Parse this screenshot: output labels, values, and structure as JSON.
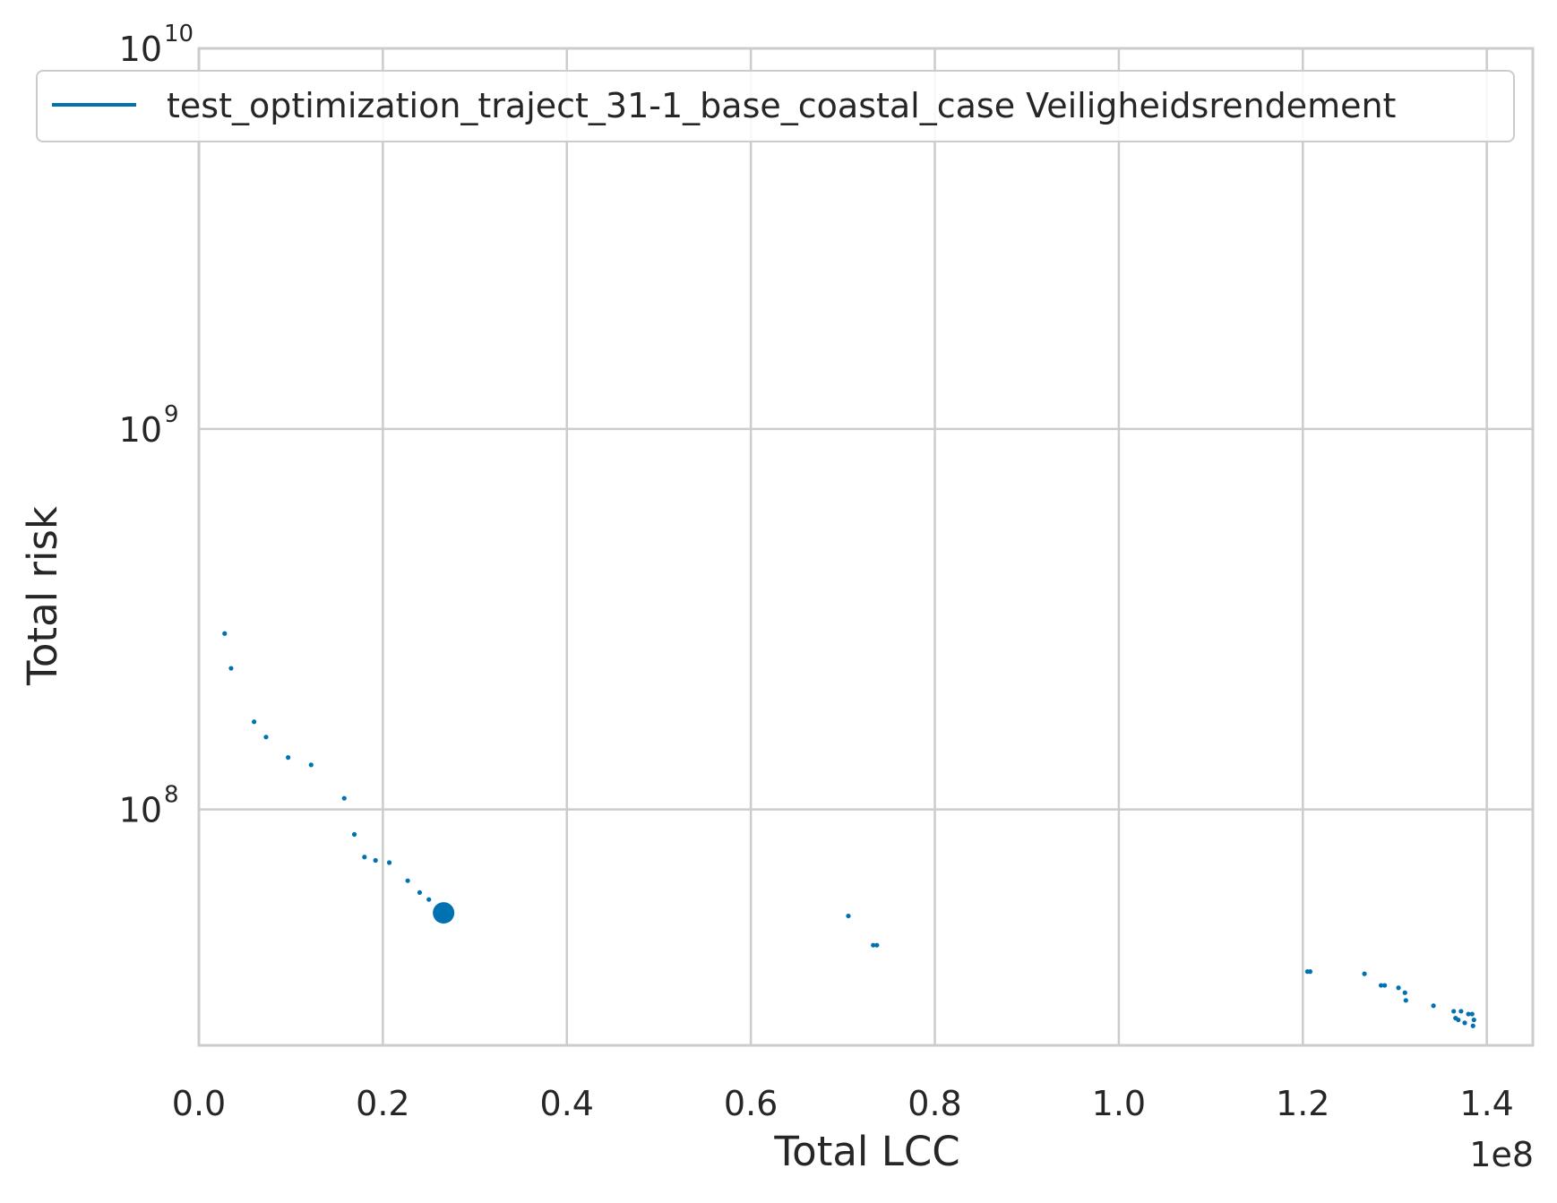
{
  "chart_data": {
    "type": "scatter",
    "xlabel": "Total LCC",
    "ylabel": "Total risk",
    "x_offset_label": "1e8",
    "xlim": [
      0,
      1.45
    ],
    "ylim": [
      24000000,
      10000000000
    ],
    "y_scale": "log",
    "grid": true,
    "legend_position": "top",
    "x_ticks": [
      0.0,
      0.2,
      0.4,
      0.6,
      0.8,
      1.0,
      1.2,
      1.4
    ],
    "x_tick_labels": [
      "0.0",
      "0.2",
      "0.4",
      "0.6",
      "0.8",
      "1.0",
      "1.2",
      "1.4"
    ],
    "y_ticks": [
      {
        "value": 100000000,
        "base": "10",
        "exp": "8"
      },
      {
        "value": 1000000000,
        "base": "10",
        "exp": "9"
      },
      {
        "value": 10000000000,
        "base": "10",
        "exp": "10"
      }
    ],
    "colors": {
      "series": "#0072b2",
      "grid": "#cccccc",
      "axes": "#cccccc"
    },
    "series": [
      {
        "name": "test_optimization_traject_31-1_base_coastal_case Veiligheidsrendement",
        "points": [
          [
            0.028,
            290000000
          ],
          [
            0.035,
            235000000
          ],
          [
            0.06,
            170000000
          ],
          [
            0.073,
            155000000
          ],
          [
            0.097,
            137000000
          ],
          [
            0.122,
            131000000
          ],
          [
            0.158,
            107000000
          ],
          [
            0.169,
            86000000
          ],
          [
            0.18,
            75000000
          ],
          [
            0.192,
            73500000
          ],
          [
            0.207,
            72500000
          ],
          [
            0.227,
            65000000
          ],
          [
            0.24,
            60500000
          ],
          [
            0.25,
            58000000
          ],
          [
            0.706,
            52500000
          ],
          [
            0.733,
            44000000
          ],
          [
            0.737,
            44000000
          ],
          [
            1.205,
            37500000
          ],
          [
            1.208,
            37500000
          ],
          [
            1.267,
            37000000
          ],
          [
            1.285,
            34500000
          ],
          [
            1.289,
            34500000
          ],
          [
            1.304,
            34000000
          ],
          [
            1.311,
            33000000
          ],
          [
            1.312,
            31500000
          ],
          [
            1.342,
            30500000
          ],
          [
            1.364,
            29500000
          ],
          [
            1.372,
            29500000
          ],
          [
            1.38,
            29000000
          ],
          [
            1.384,
            29000000
          ],
          [
            1.369,
            28000000
          ],
          [
            1.376,
            27500000
          ],
          [
            1.385,
            27000000
          ],
          [
            1.386,
            28000000
          ],
          [
            1.366,
            28300000
          ]
        ],
        "highlight": [
          [
            0.266,
            53500000
          ]
        ]
      }
    ]
  }
}
